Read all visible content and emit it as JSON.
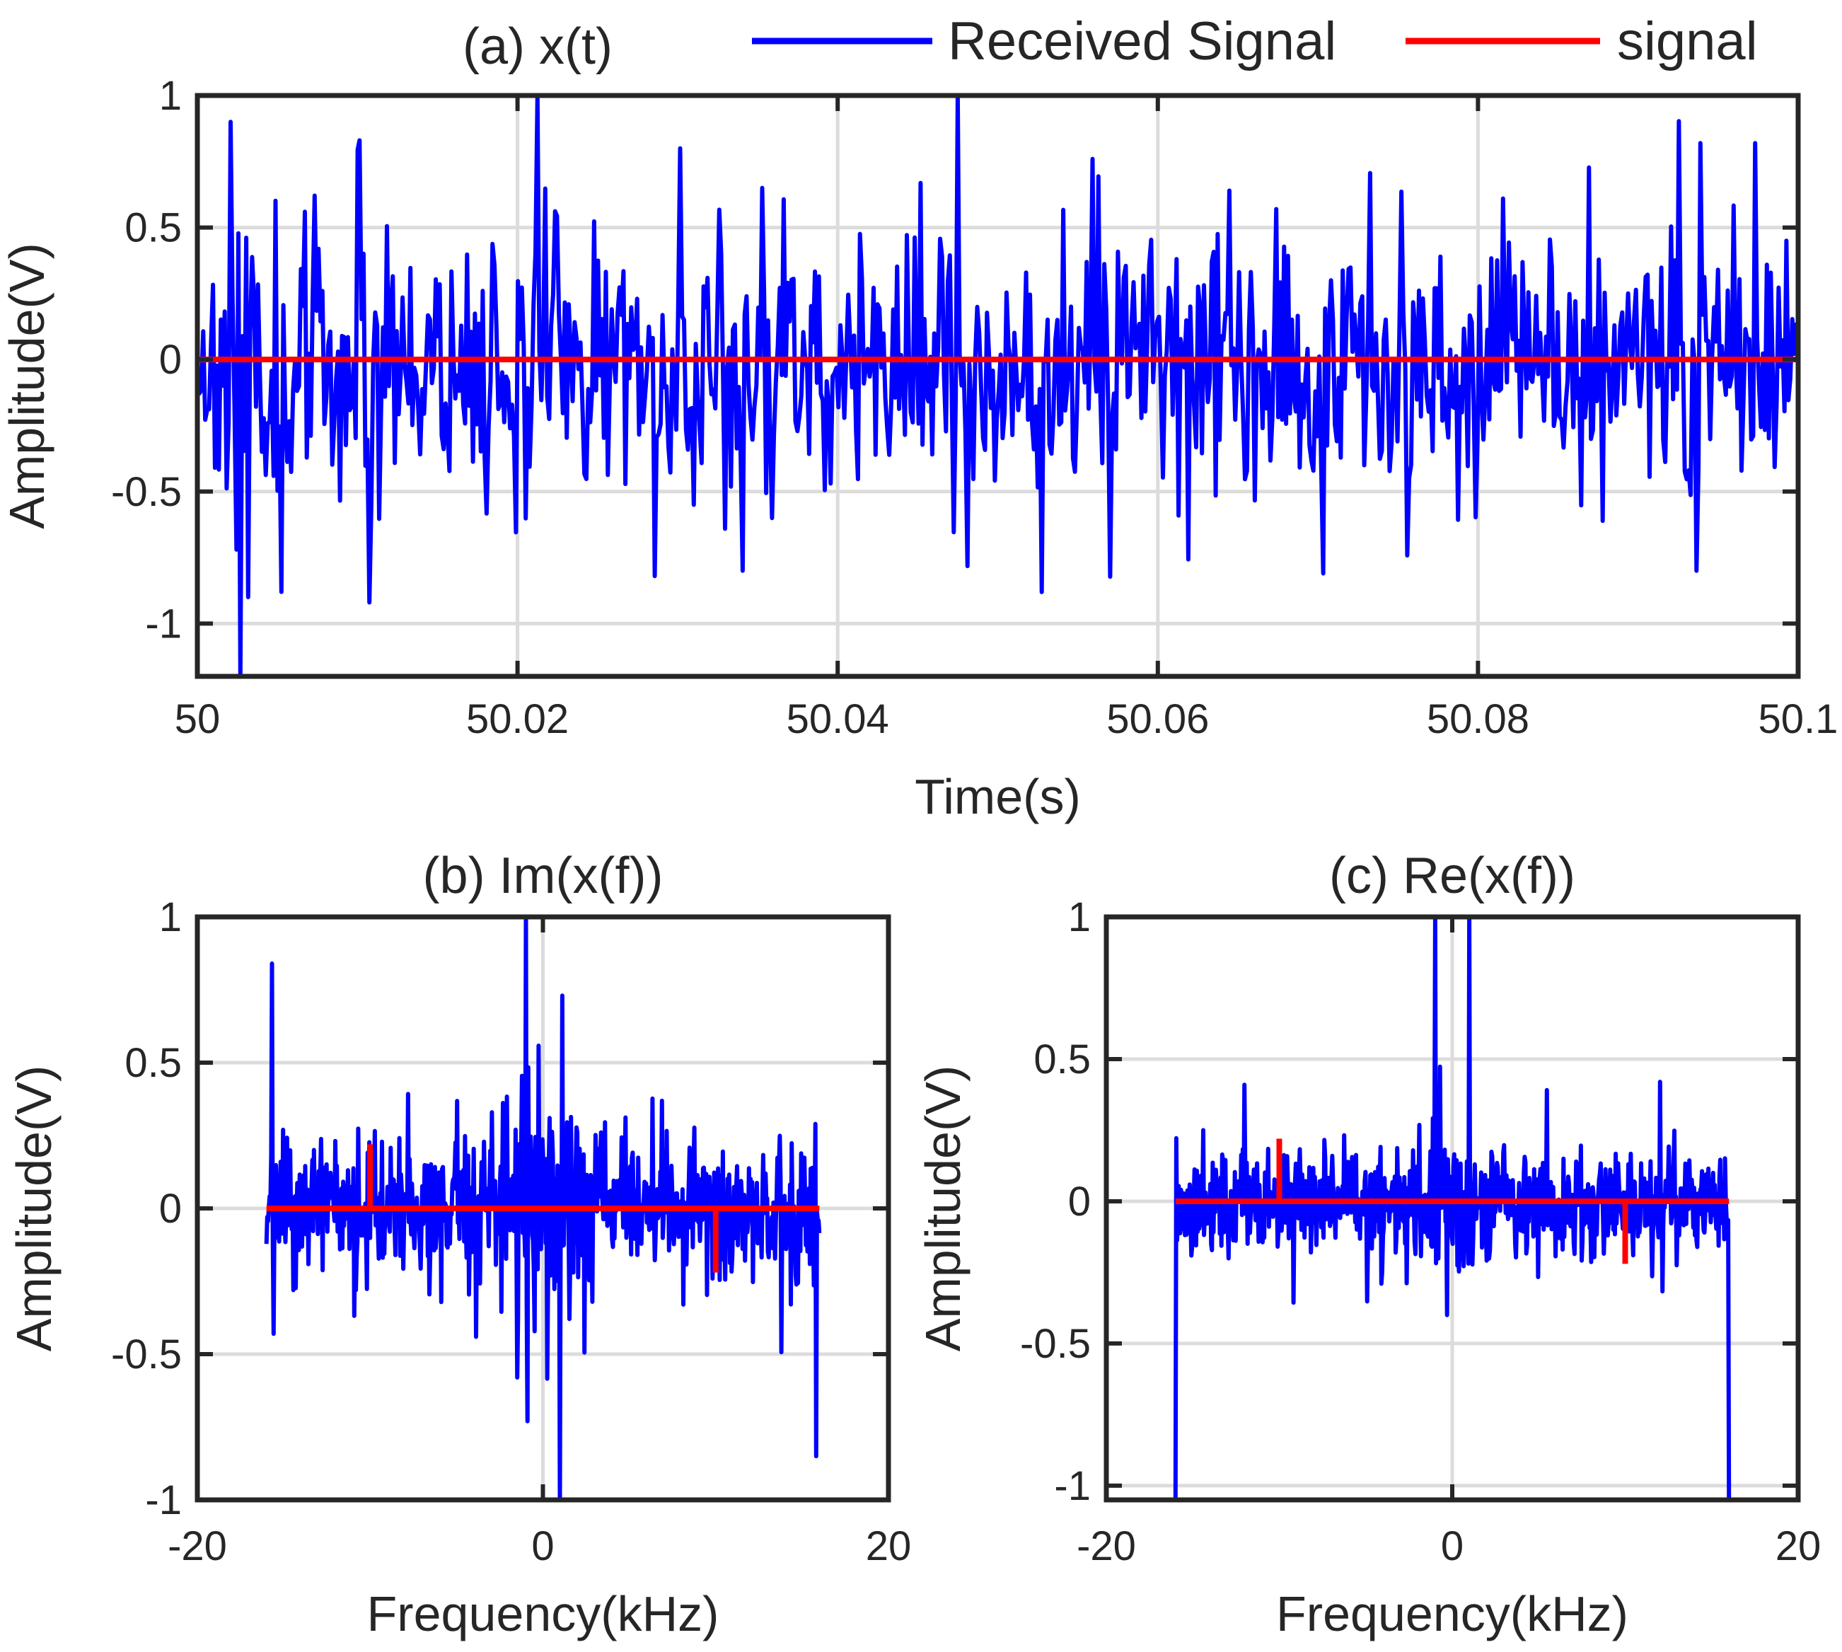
{
  "colors": {
    "received": "#0000ff",
    "signal": "#ff0000",
    "grid": "#dcdcdc",
    "axes": "#262626",
    "background": "#ffffff"
  },
  "legend": {
    "received_label": "Received Signal",
    "signal_label": "signal",
    "placement": "top, outside plot (a)"
  },
  "chart_data": [
    {
      "id": "a",
      "type": "line",
      "title": "(a) x(t)",
      "xlabel": "Time(s)",
      "ylabel": "Amplitude(V)",
      "xlim": [
        50,
        50.1
      ],
      "ylim": [
        -1.2,
        1.0
      ],
      "grid": true,
      "xticks": [
        50,
        50.02,
        50.04,
        50.06,
        50.08,
        50.1
      ],
      "xtick_labels": [
        "50",
        "50.02",
        "50.04",
        "50.06",
        "50.08",
        "50.1"
      ],
      "yticks": [
        -1,
        -0.5,
        0,
        0.5,
        1
      ],
      "ytick_labels": [
        "-1",
        "-0.5",
        "0",
        "0.5",
        "1"
      ],
      "series": [
        {
          "name": "Received Signal",
          "kind": "noise",
          "n": 820,
          "seed": 11,
          "x_range": [
            50,
            50.1
          ],
          "base_std": 0.26,
          "hard_min": -1.2,
          "hard_max": 1.0,
          "extremes": [
            {
              "x": 50.0021,
              "y": 0.9
            },
            {
              "x": 50.0025,
              "y": -0.72
            },
            {
              "x": 50.0027,
              "y": -1.2
            },
            {
              "x": 50.0032,
              "y": -0.9
            },
            {
              "x": 50.0052,
              "y": -0.88
            },
            {
              "x": 50.0101,
              "y": 0.83
            },
            {
              "x": 50.0107,
              "y": -0.92
            },
            {
              "x": 50.0212,
              "y": 1.0
            },
            {
              "x": 50.0286,
              "y": -0.82
            },
            {
              "x": 50.0301,
              "y": 0.8
            },
            {
              "x": 50.0341,
              "y": -0.8
            },
            {
              "x": 50.0559,
              "y": 0.76
            },
            {
              "x": 50.0703,
              "y": -0.81
            },
            {
              "x": 50.0939,
              "y": 0.82
            },
            {
              "x": 50.0937,
              "y": -0.8
            },
            {
              "x": 50.0973,
              "y": 0.82
            }
          ]
        },
        {
          "name": "signal",
          "kind": "line",
          "x": [
            50,
            50.1
          ],
          "y": [
            0,
            0
          ]
        }
      ]
    },
    {
      "id": "b",
      "type": "line",
      "title": "(b) Im(x(f))",
      "xlabel": "Frequency(kHz)",
      "ylabel": "Amplitude(V)",
      "xlim": [
        -20,
        20
      ],
      "ylim": [
        -1,
        1
      ],
      "grid": true,
      "xticks": [
        -20,
        0,
        20
      ],
      "xtick_labels": [
        "-20",
        "0",
        "20"
      ],
      "yticks": [
        -1,
        -0.5,
        0,
        0.5,
        1
      ],
      "ytick_labels": [
        "-1",
        "-0.5",
        "0",
        "0.5",
        "1"
      ],
      "series": [
        {
          "name": "Received Signal",
          "kind": "noise",
          "n": 700,
          "seed": 23,
          "x_range": [
            -16,
            16
          ],
          "base_std": 0.11,
          "center_boost": 0.12,
          "hard_min": -1.0,
          "hard_max": 1.0,
          "extremes": [
            {
              "x": -15.7,
              "y": 0.84
            },
            {
              "x": -15.6,
              "y": -0.43
            },
            {
              "x": -1.0,
              "y": 1.0
            },
            {
              "x": -0.9,
              "y": -0.73
            },
            {
              "x": -1.5,
              "y": -0.58
            },
            {
              "x": 1.0,
              "y": -1.0
            },
            {
              "x": 1.1,
              "y": 0.73
            },
            {
              "x": 15.8,
              "y": -0.85
            }
          ]
        },
        {
          "name": "signal",
          "kind": "stem",
          "x": [
            -16,
            -10,
            10,
            16
          ],
          "y": [
            0,
            0.22,
            -0.22,
            0
          ]
        }
      ]
    },
    {
      "id": "c",
      "type": "line",
      "title": "(c) Re(x(f))",
      "xlabel": "Frequency(kHz)",
      "ylabel": "Amplitude(V)",
      "xlim": [
        -20,
        20
      ],
      "ylim": [
        -1.05,
        1.0
      ],
      "grid": true,
      "xticks": [
        -20,
        0,
        20
      ],
      "xtick_labels": [
        "-20",
        "0",
        "20"
      ],
      "yticks": [
        -1,
        -0.5,
        0,
        0.5,
        1
      ],
      "ytick_labels": [
        "-1",
        "-0.5",
        "0",
        "0.5",
        "1"
      ],
      "series": [
        {
          "name": "Received Signal",
          "kind": "noise",
          "n": 700,
          "seed": 37,
          "x_range": [
            -16,
            16
          ],
          "base_std": 0.09,
          "center_boost": 0.05,
          "hard_min": -1.05,
          "hard_max": 1.0,
          "extremes": [
            {
              "x": -16.0,
              "y": -1.05
            },
            {
              "x": -1.0,
              "y": 1.0
            },
            {
              "x": 1.0,
              "y": 1.0
            },
            {
              "x": -0.3,
              "y": -0.4
            },
            {
              "x": 12.0,
              "y": 0.42
            },
            {
              "x": -12.0,
              "y": 0.41
            },
            {
              "x": 16.0,
              "y": -1.05
            }
          ]
        },
        {
          "name": "signal",
          "kind": "stem",
          "x": [
            -16,
            -10,
            10,
            16
          ],
          "y": [
            0,
            0.22,
            -0.22,
            0
          ]
        }
      ]
    }
  ]
}
